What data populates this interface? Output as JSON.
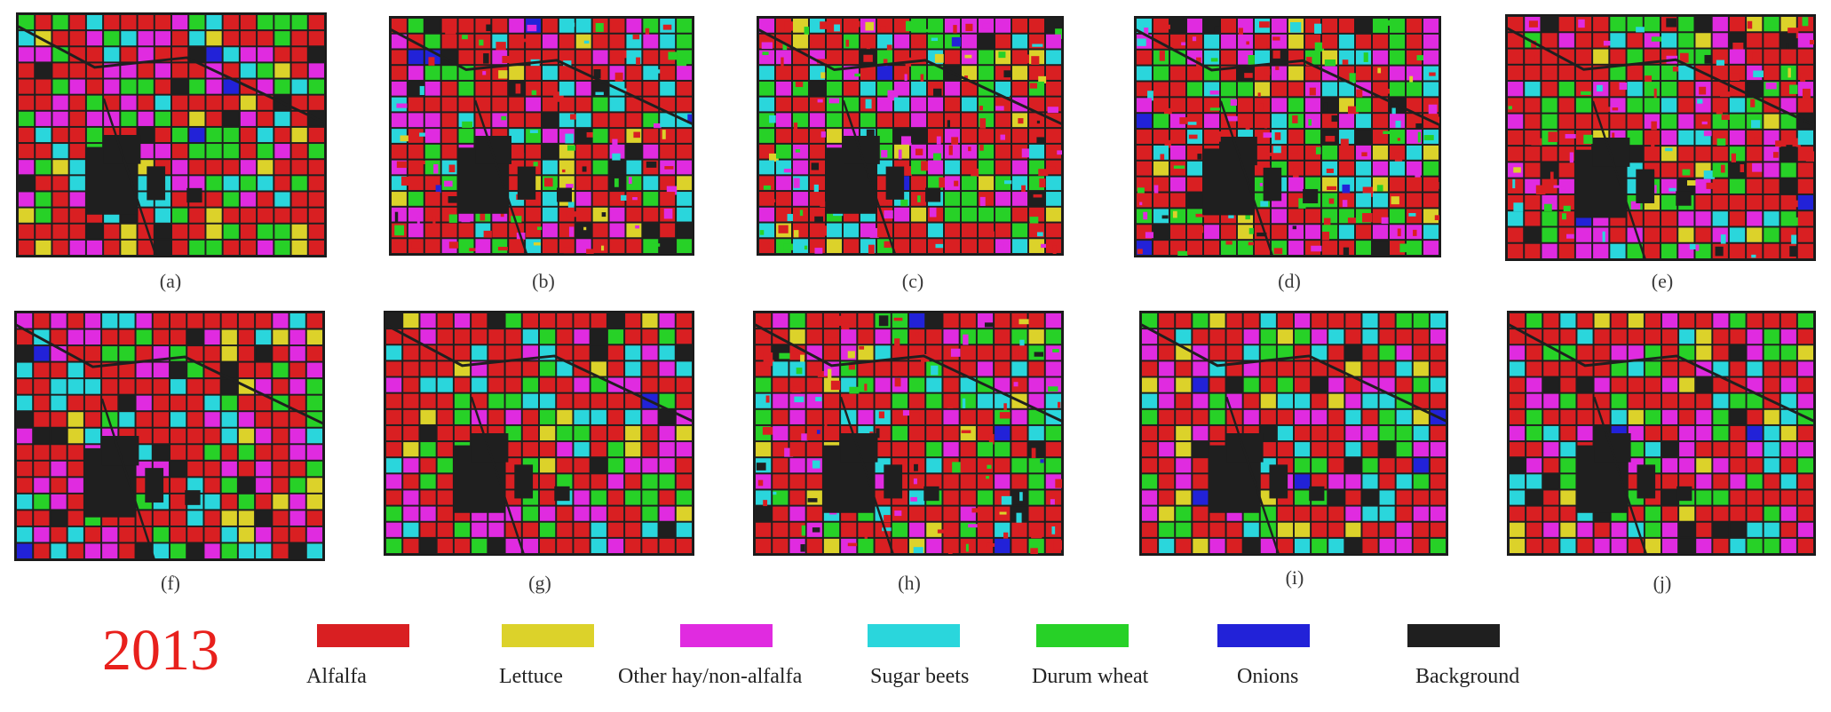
{
  "panels": [
    {
      "label": "(a)"
    },
    {
      "label": "(b)"
    },
    {
      "label": "(c)"
    },
    {
      "label": "(d)"
    },
    {
      "label": "(e)"
    },
    {
      "label": "(f)"
    },
    {
      "label": "(g)"
    },
    {
      "label": "(h)"
    },
    {
      "label": "(i)"
    },
    {
      "label": "(j)"
    }
  ],
  "year": "2013",
  "legend": [
    {
      "label": "Alfalfa",
      "color": "#d91f22"
    },
    {
      "label": "Lettuce",
      "color": "#dcd22a"
    },
    {
      "label": "Other hay/non-alfalfa",
      "color": "#e02be0"
    },
    {
      "label": "Sugar beets",
      "color": "#2ad6dc"
    },
    {
      "label": "Durum wheat",
      "color": "#27d127"
    },
    {
      "label": "Onions",
      "color": "#2222d8"
    },
    {
      "label": "Background",
      "color": "#1f1f1f"
    }
  ]
}
